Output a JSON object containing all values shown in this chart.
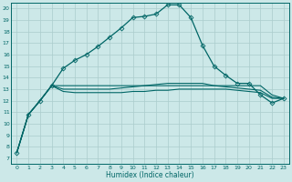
{
  "xlabel": "Humidex (Indice chaleur)",
  "bg_color": "#cce8e8",
  "grid_color": "#aacccc",
  "line_color": "#006666",
  "xlim": [
    -0.5,
    23.5
  ],
  "ylim": [
    6.5,
    20.5
  ],
  "xticks": [
    0,
    1,
    2,
    3,
    4,
    5,
    6,
    7,
    8,
    9,
    10,
    11,
    12,
    13,
    14,
    15,
    16,
    17,
    18,
    19,
    20,
    21,
    22,
    23
  ],
  "yticks": [
    7,
    8,
    9,
    10,
    11,
    12,
    13,
    14,
    15,
    16,
    17,
    18,
    19,
    20
  ],
  "series": [
    {
      "x": [
        0,
        1,
        2,
        3,
        4,
        5,
        6,
        7,
        8,
        9,
        10,
        11,
        12,
        13,
        14,
        15,
        16,
        17,
        18,
        19,
        20,
        21,
        22,
        23
      ],
      "y": [
        7.5,
        10.8,
        12.0,
        13.3,
        14.8,
        15.5,
        16.0,
        16.7,
        17.5,
        18.3,
        19.2,
        19.3,
        19.5,
        20.3,
        20.3,
        19.2,
        16.8,
        15.0,
        14.2,
        13.5,
        13.5,
        12.5,
        11.8,
        12.2
      ],
      "marker": "D",
      "ms": 2.5,
      "lw": 0.9
    },
    {
      "x": [
        0,
        1,
        2,
        3,
        4,
        5,
        6,
        7,
        8,
        9,
        10,
        11,
        12,
        13,
        14,
        15,
        16,
        17,
        18,
        19,
        20,
        21,
        22,
        23
      ],
      "y": [
        7.5,
        10.8,
        12.0,
        13.3,
        13.3,
        13.3,
        13.3,
        13.3,
        13.3,
        13.3,
        13.3,
        13.3,
        13.3,
        13.3,
        13.3,
        13.3,
        13.3,
        13.3,
        13.3,
        13.3,
        13.3,
        13.3,
        12.5,
        12.2
      ],
      "marker": null,
      "ms": 0,
      "lw": 0.8
    },
    {
      "x": [
        0,
        1,
        2,
        3,
        4,
        5,
        6,
        7,
        8,
        9,
        10,
        11,
        12,
        13,
        14,
        15,
        16,
        17,
        18,
        19,
        20,
        21,
        22,
        23
      ],
      "y": [
        7.5,
        10.8,
        12.0,
        13.3,
        13.0,
        13.0,
        13.0,
        13.0,
        13.0,
        13.1,
        13.2,
        13.3,
        13.4,
        13.5,
        13.5,
        13.5,
        13.5,
        13.3,
        13.2,
        13.1,
        13.0,
        12.9,
        12.3,
        12.2
      ],
      "marker": null,
      "ms": 0,
      "lw": 0.8
    },
    {
      "x": [
        0,
        1,
        2,
        3,
        4,
        5,
        6,
        7,
        8,
        9,
        10,
        11,
        12,
        13,
        14,
        15,
        16,
        17,
        18,
        19,
        20,
        21,
        22,
        23
      ],
      "y": [
        7.5,
        10.8,
        12.0,
        13.3,
        12.8,
        12.7,
        12.7,
        12.7,
        12.7,
        12.7,
        12.8,
        12.8,
        12.9,
        12.9,
        13.0,
        13.0,
        13.0,
        13.0,
        13.0,
        12.9,
        12.8,
        12.7,
        12.2,
        12.2
      ],
      "marker": null,
      "ms": 0,
      "lw": 0.8
    }
  ]
}
